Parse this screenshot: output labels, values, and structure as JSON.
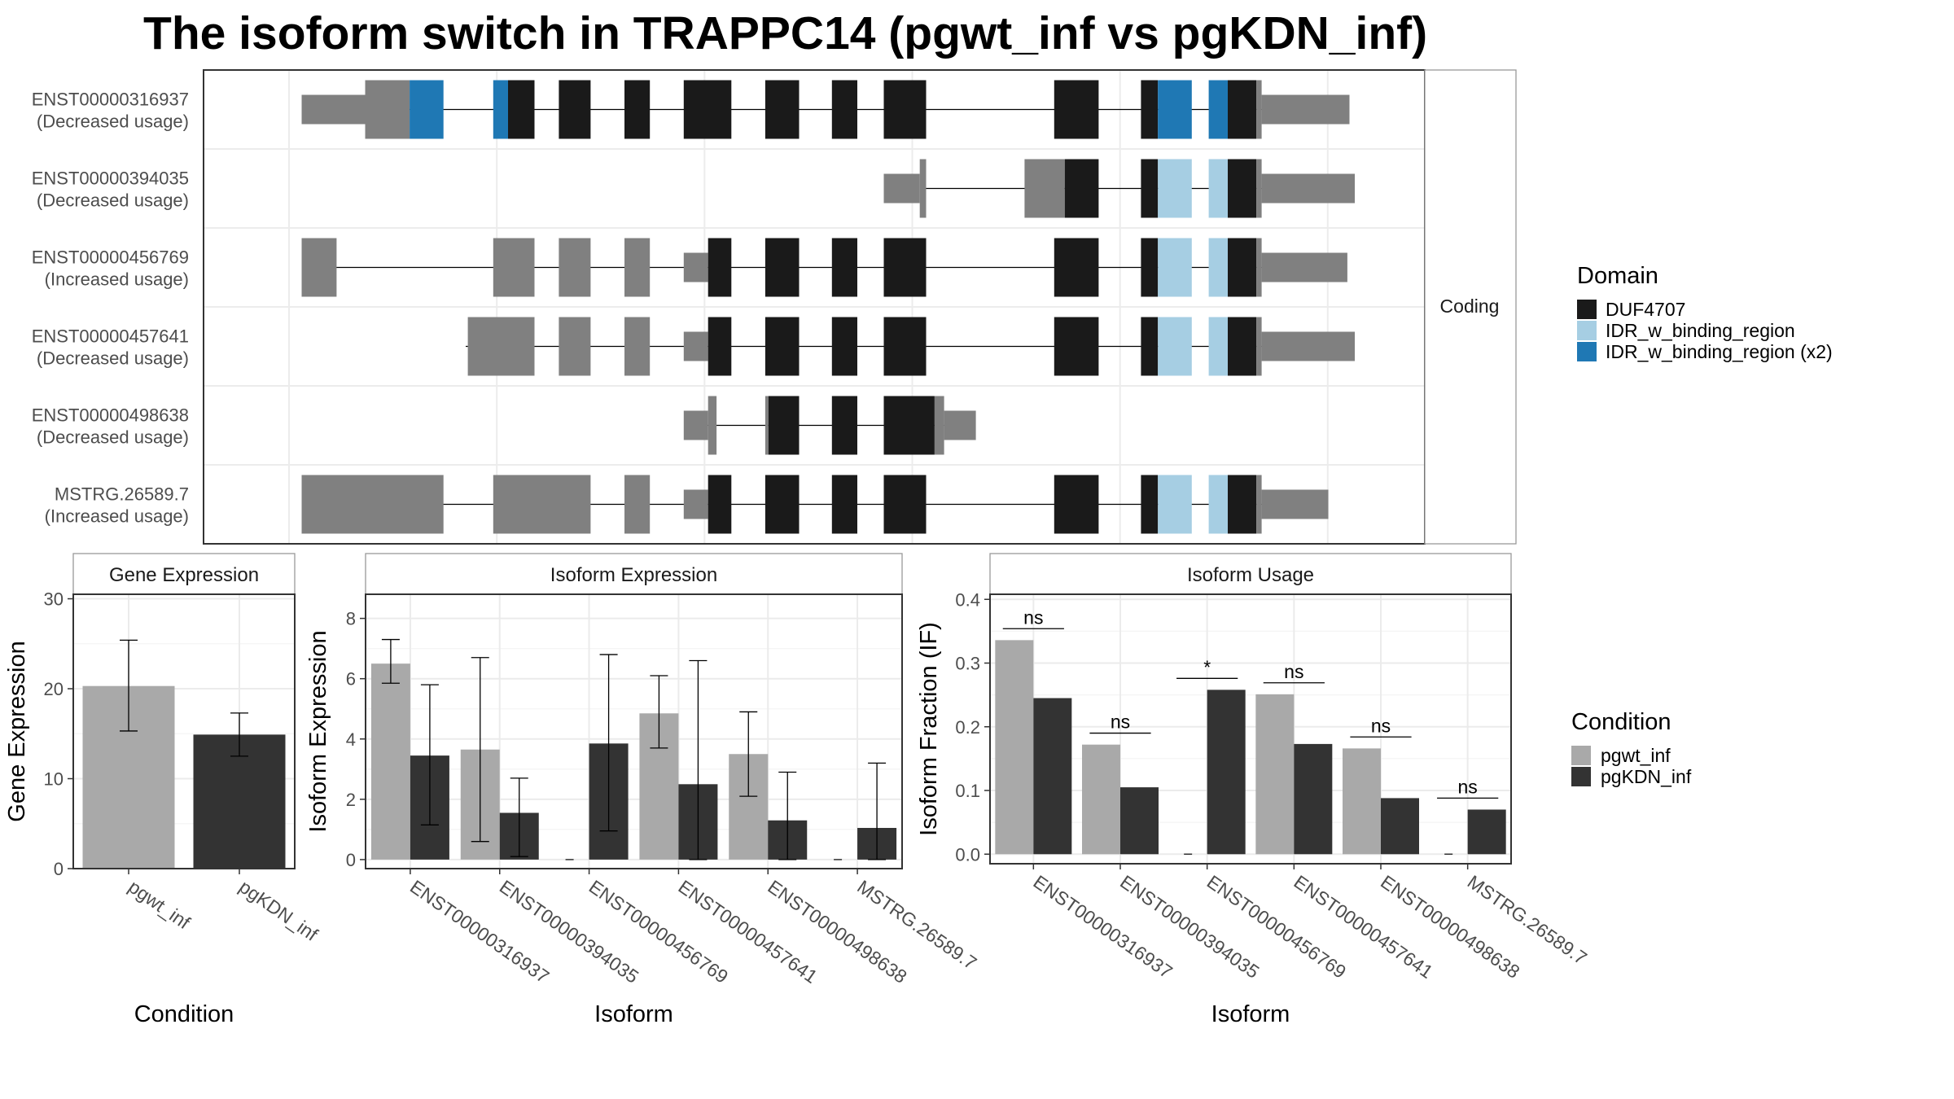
{
  "title": "The isoform switch in TRAPPC14 (pgwt_inf vs pgKDN_inf)",
  "colors": {
    "DUF4707": "#1a1a1a",
    "IDR_w_binding_region": "#a6cee3",
    "IDR_w_binding_region (x2)": "#1f78b4",
    "utr": "#808080",
    "pgwt_inf": "#a9a9a9",
    "pgKDN_inf": "#333333"
  },
  "chart_data": [
    {
      "type": "gene_structure",
      "facet_label": "Coding",
      "legend_title": "Domain",
      "legend": [
        "DUF4707",
        "IDR_w_binding_region",
        "IDR_w_binding_region (x2)"
      ],
      "transcripts": [
        {
          "name": "ENST00000316937",
          "note": "(Decreased usage)",
          "intron": [
            0.087,
            0.978
          ],
          "features": [
            {
              "kind": "utr",
              "s": 0.045,
              "e": 0.105
            },
            {
              "kind": "exon",
              "d": "utr",
              "s": 0.105,
              "e": 0.147
            },
            {
              "kind": "exon",
              "d": "IDR_w_binding_region (x2)",
              "s": 0.147,
              "e": 0.179
            },
            {
              "kind": "exon",
              "d": "IDR_w_binding_region (x2)",
              "s": 0.226,
              "e": 0.24
            },
            {
              "kind": "exon",
              "d": "DUF4707",
              "s": 0.24,
              "e": 0.265
            },
            {
              "kind": "exon",
              "d": "DUF4707",
              "s": 0.288,
              "e": 0.318
            },
            {
              "kind": "exon",
              "d": "DUF4707",
              "s": 0.35,
              "e": 0.374
            },
            {
              "kind": "exon",
              "d": "DUF4707",
              "s": 0.406,
              "e": 0.451
            },
            {
              "kind": "exon",
              "d": "DUF4707",
              "s": 0.483,
              "e": 0.515
            },
            {
              "kind": "exon",
              "d": "DUF4707",
              "s": 0.546,
              "e": 0.57
            },
            {
              "kind": "exon",
              "d": "DUF4707",
              "s": 0.595,
              "e": 0.635
            },
            {
              "kind": "exon",
              "d": "DUF4707",
              "s": 0.756,
              "e": 0.798
            },
            {
              "kind": "exon",
              "d": "DUF4707",
              "s": 0.838,
              "e": 0.854
            },
            {
              "kind": "exon",
              "d": "IDR_w_binding_region (x2)",
              "s": 0.854,
              "e": 0.886
            },
            {
              "kind": "exon",
              "d": "IDR_w_binding_region (x2)",
              "s": 0.902,
              "e": 0.92
            },
            {
              "kind": "exon",
              "d": "DUF4707",
              "s": 0.92,
              "e": 0.947
            },
            {
              "kind": "exon",
              "d": "utr",
              "s": 0.947,
              "e": 0.952
            },
            {
              "kind": "utr",
              "s": 0.952,
              "e": 1.035
            }
          ]
        },
        {
          "name": "ENST00000394035",
          "note": "(Decreased usage)",
          "intron": [
            0.63,
            0.978
          ],
          "features": [
            {
              "kind": "utr",
              "s": 0.595,
              "e": 0.629
            },
            {
              "kind": "exon",
              "d": "utr",
              "s": 0.629,
              "e": 0.635
            },
            {
              "kind": "exon",
              "d": "utr",
              "s": 0.728,
              "e": 0.766
            },
            {
              "kind": "exon",
              "d": "DUF4707",
              "s": 0.766,
              "e": 0.798
            },
            {
              "kind": "exon",
              "d": "DUF4707",
              "s": 0.838,
              "e": 0.854
            },
            {
              "kind": "exon",
              "d": "IDR_w_binding_region",
              "s": 0.854,
              "e": 0.886
            },
            {
              "kind": "exon",
              "d": "IDR_w_binding_region",
              "s": 0.902,
              "e": 0.92
            },
            {
              "kind": "exon",
              "d": "DUF4707",
              "s": 0.92,
              "e": 0.947
            },
            {
              "kind": "exon",
              "d": "utr",
              "s": 0.947,
              "e": 0.952
            },
            {
              "kind": "utr",
              "s": 0.952,
              "e": 1.04
            }
          ]
        },
        {
          "name": "ENST00000456769",
          "note": "(Increased usage)",
          "intron": [
            0.062,
            0.978
          ],
          "features": [
            {
              "kind": "exon",
              "d": "utr",
              "s": 0.045,
              "e": 0.078
            },
            {
              "kind": "exon",
              "d": "utr",
              "s": 0.226,
              "e": 0.265
            },
            {
              "kind": "exon",
              "d": "utr",
              "s": 0.288,
              "e": 0.318
            },
            {
              "kind": "exon",
              "d": "utr",
              "s": 0.35,
              "e": 0.374
            },
            {
              "kind": "utr",
              "s": 0.406,
              "e": 0.429
            },
            {
              "kind": "exon",
              "d": "DUF4707",
              "s": 0.429,
              "e": 0.451
            },
            {
              "kind": "exon",
              "d": "DUF4707",
              "s": 0.483,
              "e": 0.515
            },
            {
              "kind": "exon",
              "d": "DUF4707",
              "s": 0.546,
              "e": 0.57
            },
            {
              "kind": "exon",
              "d": "DUF4707",
              "s": 0.595,
              "e": 0.635
            },
            {
              "kind": "exon",
              "d": "DUF4707",
              "s": 0.756,
              "e": 0.798
            },
            {
              "kind": "exon",
              "d": "DUF4707",
              "s": 0.838,
              "e": 0.854
            },
            {
              "kind": "exon",
              "d": "IDR_w_binding_region",
              "s": 0.854,
              "e": 0.886
            },
            {
              "kind": "exon",
              "d": "IDR_w_binding_region",
              "s": 0.902,
              "e": 0.92
            },
            {
              "kind": "exon",
              "d": "DUF4707",
              "s": 0.92,
              "e": 0.947
            },
            {
              "kind": "exon",
              "d": "utr",
              "s": 0.947,
              "e": 0.952
            },
            {
              "kind": "utr",
              "s": 0.952,
              "e": 1.033
            }
          ]
        },
        {
          "name": "ENST00000457641",
          "note": "(Decreased usage)",
          "intron": [
            0.2,
            0.978
          ],
          "features": [
            {
              "kind": "exon",
              "d": "utr",
              "s": 0.202,
              "e": 0.265
            },
            {
              "kind": "exon",
              "d": "utr",
              "s": 0.288,
              "e": 0.318
            },
            {
              "kind": "exon",
              "d": "utr",
              "s": 0.35,
              "e": 0.374
            },
            {
              "kind": "utr",
              "s": 0.406,
              "e": 0.429
            },
            {
              "kind": "exon",
              "d": "DUF4707",
              "s": 0.429,
              "e": 0.451
            },
            {
              "kind": "exon",
              "d": "DUF4707",
              "s": 0.483,
              "e": 0.515
            },
            {
              "kind": "exon",
              "d": "DUF4707",
              "s": 0.546,
              "e": 0.57
            },
            {
              "kind": "exon",
              "d": "DUF4707",
              "s": 0.595,
              "e": 0.635
            },
            {
              "kind": "exon",
              "d": "DUF4707",
              "s": 0.756,
              "e": 0.798
            },
            {
              "kind": "exon",
              "d": "DUF4707",
              "s": 0.838,
              "e": 0.854
            },
            {
              "kind": "exon",
              "d": "IDR_w_binding_region",
              "s": 0.854,
              "e": 0.886
            },
            {
              "kind": "exon",
              "d": "IDR_w_binding_region",
              "s": 0.902,
              "e": 0.92
            },
            {
              "kind": "exon",
              "d": "DUF4707",
              "s": 0.92,
              "e": 0.947
            },
            {
              "kind": "exon",
              "d": "utr",
              "s": 0.947,
              "e": 0.952
            },
            {
              "kind": "utr",
              "s": 0.952,
              "e": 1.04
            }
          ]
        },
        {
          "name": "ENST00000498638",
          "note": "(Decreased usage)",
          "intron": [
            0.42,
            0.68
          ],
          "features": [
            {
              "kind": "utr",
              "s": 0.406,
              "e": 0.429
            },
            {
              "kind": "exon",
              "d": "utr",
              "s": 0.429,
              "e": 0.437
            },
            {
              "kind": "exon",
              "d": "utr",
              "s": 0.483,
              "e": 0.486
            },
            {
              "kind": "exon",
              "d": "DUF4707",
              "s": 0.486,
              "e": 0.515
            },
            {
              "kind": "exon",
              "d": "DUF4707",
              "s": 0.546,
              "e": 0.57
            },
            {
              "kind": "exon",
              "d": "DUF4707",
              "s": 0.595,
              "e": 0.643
            },
            {
              "kind": "exon",
              "d": "utr",
              "s": 0.643,
              "e": 0.652
            },
            {
              "kind": "utr",
              "s": 0.652,
              "e": 0.682
            }
          ]
        },
        {
          "name": "MSTRG.26589.7",
          "note": "(Increased usage)",
          "intron": [
            0.17,
            0.978
          ],
          "features": [
            {
              "kind": "exon",
              "d": "utr",
              "s": 0.045,
              "e": 0.179
            },
            {
              "kind": "exon",
              "d": "utr",
              "s": 0.226,
              "e": 0.318
            },
            {
              "kind": "exon",
              "d": "utr",
              "s": 0.35,
              "e": 0.374
            },
            {
              "kind": "utr",
              "s": 0.406,
              "e": 0.429
            },
            {
              "kind": "exon",
              "d": "DUF4707",
              "s": 0.429,
              "e": 0.451
            },
            {
              "kind": "exon",
              "d": "DUF4707",
              "s": 0.483,
              "e": 0.515
            },
            {
              "kind": "exon",
              "d": "DUF4707",
              "s": 0.546,
              "e": 0.57
            },
            {
              "kind": "exon",
              "d": "DUF4707",
              "s": 0.595,
              "e": 0.635
            },
            {
              "kind": "exon",
              "d": "DUF4707",
              "s": 0.756,
              "e": 0.798
            },
            {
              "kind": "exon",
              "d": "DUF4707",
              "s": 0.838,
              "e": 0.854
            },
            {
              "kind": "exon",
              "d": "IDR_w_binding_region",
              "s": 0.854,
              "e": 0.886
            },
            {
              "kind": "exon",
              "d": "IDR_w_binding_region",
              "s": 0.902,
              "e": 0.92
            },
            {
              "kind": "exon",
              "d": "DUF4707",
              "s": 0.92,
              "e": 0.947
            },
            {
              "kind": "exon",
              "d": "utr",
              "s": 0.947,
              "e": 0.952
            },
            {
              "kind": "utr",
              "s": 0.952,
              "e": 1.015
            }
          ]
        }
      ]
    },
    {
      "type": "bar",
      "panel_title": "Gene Expression",
      "xlabel": "Condition",
      "ylabel": "Gene Expression",
      "categories": [
        "pgwt_inf",
        "pgKDN_inf"
      ],
      "values": [
        20.3,
        14.9
      ],
      "err_low": [
        15.3,
        12.5
      ],
      "err_high": [
        25.4,
        17.3
      ],
      "ylim": [
        0,
        30.5
      ],
      "yticks": [
        0,
        10,
        20,
        30
      ]
    },
    {
      "type": "bar",
      "panel_title": "Isoform Expression",
      "xlabel": "Isoform",
      "ylabel": "Isoform Expression",
      "categories": [
        "ENST00000316937",
        "ENST00000394035",
        "ENST00000456769",
        "ENST00000457641",
        "ENST00000498638",
        "MSTRG.26589.7"
      ],
      "series": [
        {
          "name": "pgwt_inf",
          "values": [
            6.5,
            3.65,
            0,
            4.85,
            3.5,
            0
          ],
          "err_low": [
            5.85,
            0.6,
            0,
            3.7,
            2.1,
            0
          ],
          "err_high": [
            7.3,
            6.7,
            0,
            6.1,
            4.9,
            0
          ]
        },
        {
          "name": "pgKDN_inf",
          "values": [
            3.45,
            1.55,
            3.85,
            2.5,
            1.3,
            1.05
          ],
          "err_low": [
            1.15,
            0.1,
            0.95,
            0,
            0,
            0
          ],
          "err_high": [
            5.8,
            2.7,
            6.8,
            6.6,
            2.9,
            3.2
          ]
        }
      ],
      "ylim": [
        -0.3,
        8.8
      ],
      "yticks": [
        0,
        2,
        4,
        6,
        8
      ]
    },
    {
      "type": "bar",
      "panel_title": "Isoform Usage",
      "xlabel": "Isoform",
      "ylabel": "Isoform Fraction (IF)",
      "categories": [
        "ENST00000316937",
        "ENST00000394035",
        "ENST00000456769",
        "ENST00000457641",
        "ENST00000498638",
        "MSTRG.26589.7"
      ],
      "series": [
        {
          "name": "pgwt_inf",
          "values": [
            0.336,
            0.172,
            0,
            0.251,
            0.166,
            0
          ]
        },
        {
          "name": "pgKDN_inf",
          "values": [
            0.245,
            0.105,
            0.258,
            0.173,
            0.088,
            0.07
          ]
        }
      ],
      "significance": [
        "ns",
        "ns",
        "*",
        "ns",
        "ns",
        "ns"
      ],
      "sig_y": [
        0.354,
        0.19,
        0.276,
        0.269,
        0.184,
        0.088
      ],
      "ylim": [
        -0.015,
        0.408
      ],
      "yticks": [
        0.0,
        0.1,
        0.2,
        0.3,
        0.4
      ],
      "ytick_labels": [
        "0.0",
        "0.1",
        "0.2",
        "0.3",
        "0.4"
      ]
    }
  ],
  "condition_legend": {
    "title": "Condition",
    "items": [
      "pgwt_inf",
      "pgKDN_inf"
    ]
  }
}
